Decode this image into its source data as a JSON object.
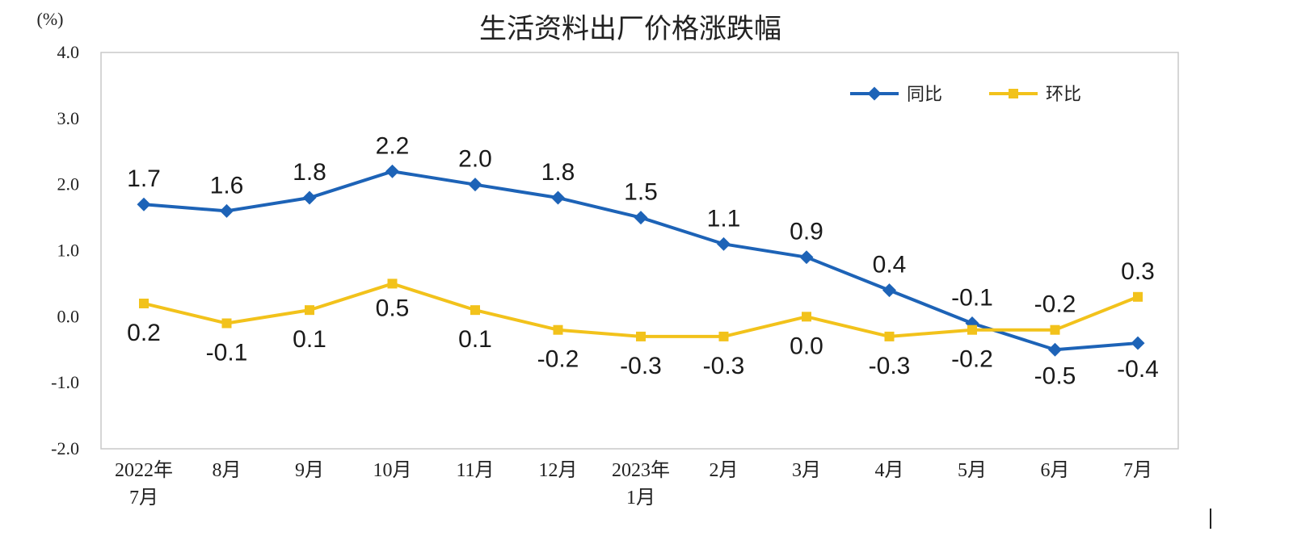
{
  "chart_data": {
    "type": "line",
    "title": "生活资料出厂价格涨跌幅",
    "unit_label": "(%)",
    "ylim": [
      -2.0,
      4.0
    ],
    "yticks": [
      "4.0",
      "3.0",
      "2.0",
      "1.0",
      "0.0",
      "-1.0",
      "-2.0"
    ],
    "x": [
      [
        "2022年",
        "7月"
      ],
      [
        "8月"
      ],
      [
        "9月"
      ],
      [
        "10月"
      ],
      [
        "11月"
      ],
      [
        "12月"
      ],
      [
        "2023年",
        "1月"
      ],
      [
        "2月"
      ],
      [
        "3月"
      ],
      [
        "4月"
      ],
      [
        "5月"
      ],
      [
        "6月"
      ],
      [
        "7月"
      ]
    ],
    "series": [
      {
        "name": "同比",
        "color": "#1d63b7",
        "marker": "diamond",
        "values": [
          1.7,
          1.6,
          1.8,
          2.2,
          2.0,
          1.8,
          1.5,
          1.1,
          0.9,
          0.4,
          -0.1,
          -0.5,
          -0.4
        ],
        "labels": [
          "1.7",
          "1.6",
          "1.8",
          "2.2",
          "2.0",
          "1.8",
          "1.5",
          "1.1",
          "0.9",
          "0.4",
          "-0.1",
          "-0.5",
          "-0.4"
        ]
      },
      {
        "name": "环比",
        "color": "#f2c21b",
        "marker": "square",
        "values": [
          0.2,
          -0.1,
          0.1,
          0.5,
          0.1,
          -0.2,
          -0.3,
          -0.3,
          0.0,
          -0.3,
          -0.2,
          -0.2,
          0.3
        ],
        "labels": [
          "0.2",
          "-0.1",
          "0.1",
          "0.5",
          "0.1",
          "-0.2",
          "-0.3",
          "-0.3",
          "0.0",
          "-0.3",
          "-0.2",
          "-0.2",
          "0.3"
        ]
      }
    ],
    "legend_position": "top-right",
    "grid": false
  }
}
